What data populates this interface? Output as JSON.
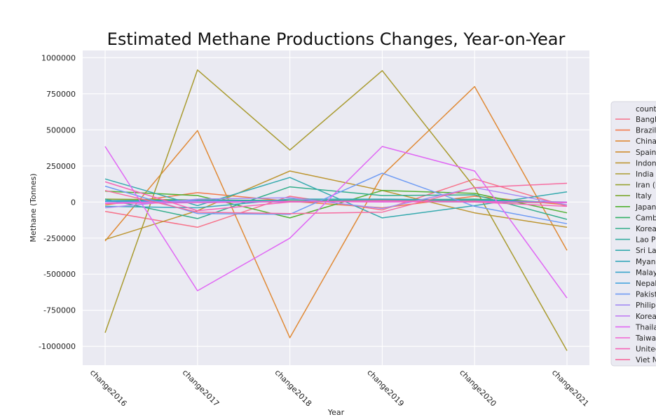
{
  "chart_data": {
    "type": "line",
    "title": "Estimated Methane Productions Changes, Year-on-Year",
    "xlabel": "Year",
    "ylabel": "Methane (Tonnes)",
    "x": [
      "change2016",
      "change2017",
      "change2018",
      "change2019",
      "change2020",
      "change2021"
    ],
    "yticks": [
      1000000,
      750000,
      500000,
      250000,
      0,
      -250000,
      -500000,
      -750000,
      -1000000
    ],
    "ytick_labels": [
      "1000000",
      "750000",
      "500000",
      "250000",
      "0",
      "-250000",
      "-500000",
      "-750000",
      "-1000000"
    ],
    "ylim": [
      -1130000,
      1050000
    ],
    "grid": true,
    "legend": {
      "title": "country",
      "placement": "right",
      "entries": [
        "Bangla",
        "Brazil",
        "China",
        "Spain",
        "Indone",
        "India",
        "Iran (I",
        "Italy",
        "Japan",
        "Camb",
        "Korea",
        "Lao P",
        "Sri La",
        "Myann",
        "Malay",
        "Nepal",
        "Pakist",
        "Philipp",
        "Korea",
        "Thaila",
        "Taiwa",
        "United",
        "Viet N"
      ]
    },
    "series": [
      {
        "name": "Bangla",
        "color": "#f77189",
        "values": [
          -65000,
          -175000,
          40000,
          -55000,
          160000,
          -30000
        ]
      },
      {
        "name": "Brazil",
        "color": "#f3794a",
        "values": [
          -20000,
          65000,
          5000,
          -40000,
          40000,
          -20000
        ]
      },
      {
        "name": "China",
        "color": "#e08a36",
        "values": [
          -270000,
          495000,
          -940000,
          185000,
          800000,
          -335000
        ]
      },
      {
        "name": "Spain",
        "color": "#d08f31",
        "values": [
          5000,
          10000,
          0,
          5000,
          5000,
          0
        ]
      },
      {
        "name": "Indone",
        "color": "#bd9632",
        "values": [
          -260000,
          -60000,
          215000,
          80000,
          -75000,
          -175000
        ]
      },
      {
        "name": "India",
        "color": "#a99b30",
        "values": [
          -905000,
          915000,
          360000,
          910000,
          100000,
          -1030000
        ]
      },
      {
        "name": "Iran (I",
        "color": "#97a232",
        "values": [
          20000,
          15000,
          0,
          10000,
          10000,
          -5000
        ]
      },
      {
        "name": "Italy",
        "color": "#7ea831",
        "values": [
          -5000,
          5000,
          0,
          5000,
          0,
          -5000
        ]
      },
      {
        "name": "Japan",
        "color": "#50b131",
        "values": [
          75000,
          45000,
          -110000,
          80000,
          60000,
          -75000
        ]
      },
      {
        "name": "Camb",
        "color": "#32b165",
        "values": [
          10000,
          15000,
          10000,
          15000,
          20000,
          -5000
        ]
      },
      {
        "name": "Korea",
        "color": "#34ae8b",
        "values": [
          20000,
          -115000,
          105000,
          45000,
          50000,
          -120000
        ]
      },
      {
        "name": "Lao P",
        "color": "#35ac9f",
        "values": [
          5000,
          10000,
          5000,
          10000,
          5000,
          0
        ]
      },
      {
        "name": "Sri La",
        "color": "#36aaae",
        "values": [
          160000,
          -25000,
          170000,
          -110000,
          -25000,
          70000
        ]
      },
      {
        "name": "Myann",
        "color": "#38a8bc",
        "values": [
          -30000,
          -40000,
          20000,
          20000,
          15000,
          -5000
        ]
      },
      {
        "name": "Malay",
        "color": "#3aa5cb",
        "values": [
          10000,
          -5000,
          5000,
          10000,
          0,
          0
        ]
      },
      {
        "name": "Nepal",
        "color": "#3ba0dc",
        "values": [
          5000,
          10000,
          5000,
          10000,
          5000,
          0
        ]
      },
      {
        "name": "Pakist",
        "color": "#6e9bf4",
        "values": [
          110000,
          -80000,
          -85000,
          200000,
          -30000,
          -150000
        ]
      },
      {
        "name": "Philipp",
        "color": "#a48cf4",
        "values": [
          -40000,
          20000,
          30000,
          -45000,
          100000,
          -20000
        ]
      },
      {
        "name": "Korea",
        "color": "#c17ff4",
        "values": [
          -5000,
          5000,
          0,
          5000,
          0,
          0
        ]
      },
      {
        "name": "Thaila",
        "color": "#e067f4",
        "values": [
          385000,
          -615000,
          -250000,
          385000,
          215000,
          -665000
        ]
      },
      {
        "name": "Taiwa",
        "color": "#f262d3",
        "values": [
          -10000,
          -5000,
          5000,
          0,
          5000,
          -5000
        ]
      },
      {
        "name": "United",
        "color": "#f565b8",
        "values": [
          140000,
          -60000,
          0,
          10000,
          0,
          -30000
        ]
      },
      {
        "name": "Viet N",
        "color": "#f66ca0",
        "values": [
          80000,
          -70000,
          -80000,
          -70000,
          100000,
          130000
        ]
      }
    ]
  }
}
